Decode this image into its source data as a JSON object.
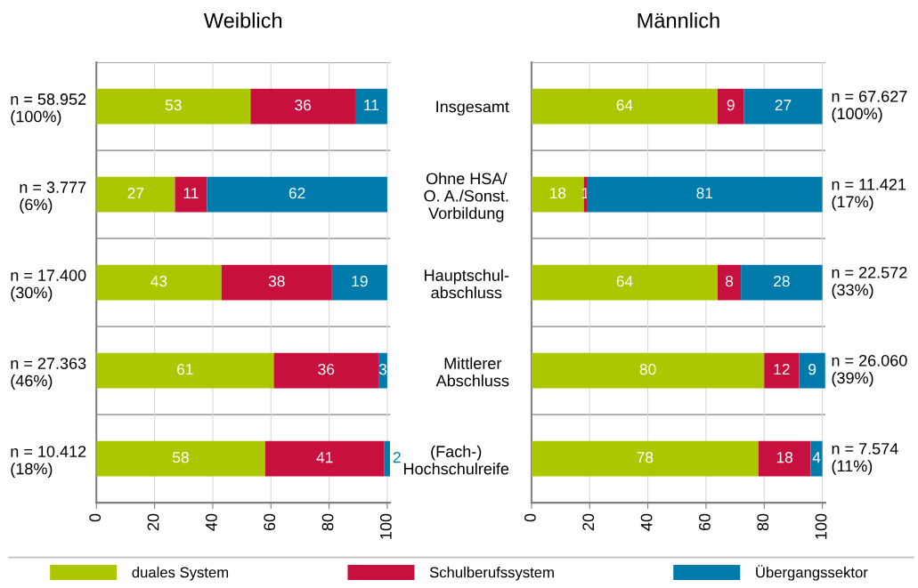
{
  "chart_data": [
    {
      "type": "bar",
      "orientation": "horizontal",
      "stacked": true,
      "title": "Weiblich",
      "categories": [
        "n = 58.952\n(100%)",
        "n = 3.777\n(6%)",
        "n = 17.400\n(30%)",
        "n = 27.363\n(46%)",
        "n = 10.412\n(18%)"
      ],
      "series": [
        {
          "name": "duales System",
          "color": "#acc700",
          "values": [
            53,
            27,
            43,
            61,
            58
          ]
        },
        {
          "name": "Schulberufssystem",
          "color": "#c8103f",
          "values": [
            36,
            11,
            38,
            36,
            41
          ]
        },
        {
          "name": "Übergangssektor",
          "color": "#007bab",
          "values": [
            11,
            62,
            19,
            3,
            2
          ]
        }
      ],
      "xlim": [
        0,
        101
      ],
      "xticks": [
        0,
        20,
        40,
        60,
        80,
        100
      ],
      "grid": true,
      "data_labels": true,
      "legend": "bottom"
    },
    {
      "type": "bar",
      "orientation": "horizontal",
      "stacked": true,
      "title": "Männlich",
      "categories": [
        "Insgesamt",
        "Ohne HSA/\nO. A./Sonst.\nVorbildung",
        "Hauptschul-\nabschluss",
        "Mittlerer\nAbschluss",
        "(Fach-)\nHochschulreife"
      ],
      "series": [
        {
          "color": "#acc700",
          "values": [
            64,
            18,
            64,
            80,
            78
          ]
        },
        {
          "color": "#c8103f",
          "values": [
            9,
            1,
            8,
            12,
            18
          ]
        },
        {
          "color": "#007bab",
          "values": [
            27,
            81,
            28,
            9,
            4
          ]
        }
      ],
      "annotations": [
        "n = 67.627\n(100%)",
        "n = 11.421\n(17%)",
        "n = 22.572\n(33%)",
        "n = 26.060\n(39%)",
        "n = 7.574\n(11%)"
      ],
      "xlim": [
        0,
        101
      ],
      "xticks": [
        0,
        20,
        40,
        60,
        80,
        100
      ],
      "grid": true,
      "data_labels": true
    }
  ]
}
